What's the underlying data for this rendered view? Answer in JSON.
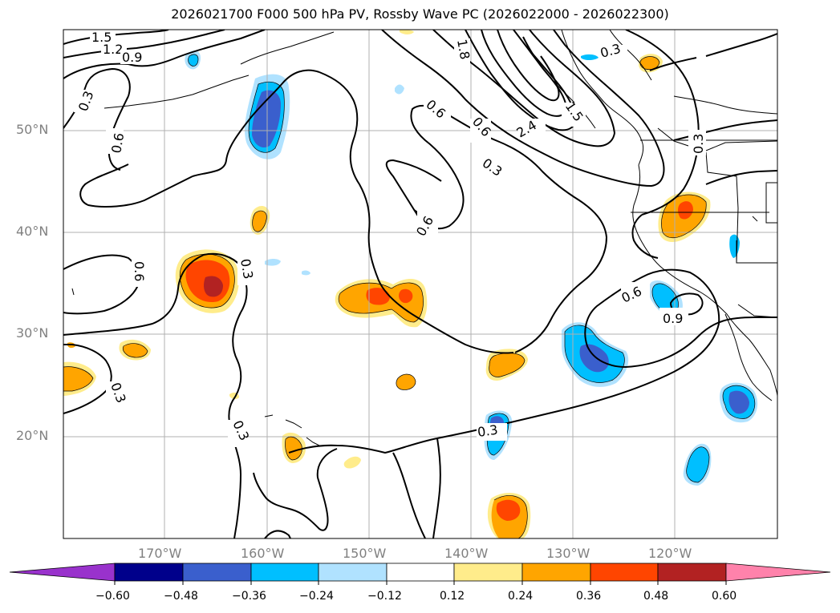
{
  "title": "2026021700 F000 500 hPa PV, Rossby Wave PC (2026022000 - 2026022300)",
  "lat_labels": [
    "50°N",
    "40°N",
    "30°N",
    "20°N"
  ],
  "lon_labels": [
    "170°W",
    "160°W",
    "150°W",
    "140°W",
    "130°W",
    "120°W"
  ],
  "colorbar": {
    "ticks": [
      "−0.60",
      "−0.48",
      "−0.36",
      "−0.24",
      "−0.12",
      "0.12",
      "0.24",
      "0.36",
      "0.48",
      "0.60"
    ],
    "colors": [
      "#9932cc",
      "#00008b",
      "#3a5fcd",
      "#00bfff",
      "#b0e2ff",
      "#ffffff",
      "#ffec8b",
      "#ffa500",
      "#ff4500",
      "#b22222",
      "#ff82ab"
    ]
  },
  "contour_labels": [
    "1.5",
    "1.2",
    "0.9",
    "0.3",
    "0.6",
    "1.8",
    "0.3",
    "0.6",
    "2.4",
    "1.5",
    "0.6",
    "0.3",
    "0.6",
    "0.3",
    "0.6",
    "0.3",
    "0.6",
    "0.9",
    "0.3",
    "0.3",
    "0.3"
  ]
}
